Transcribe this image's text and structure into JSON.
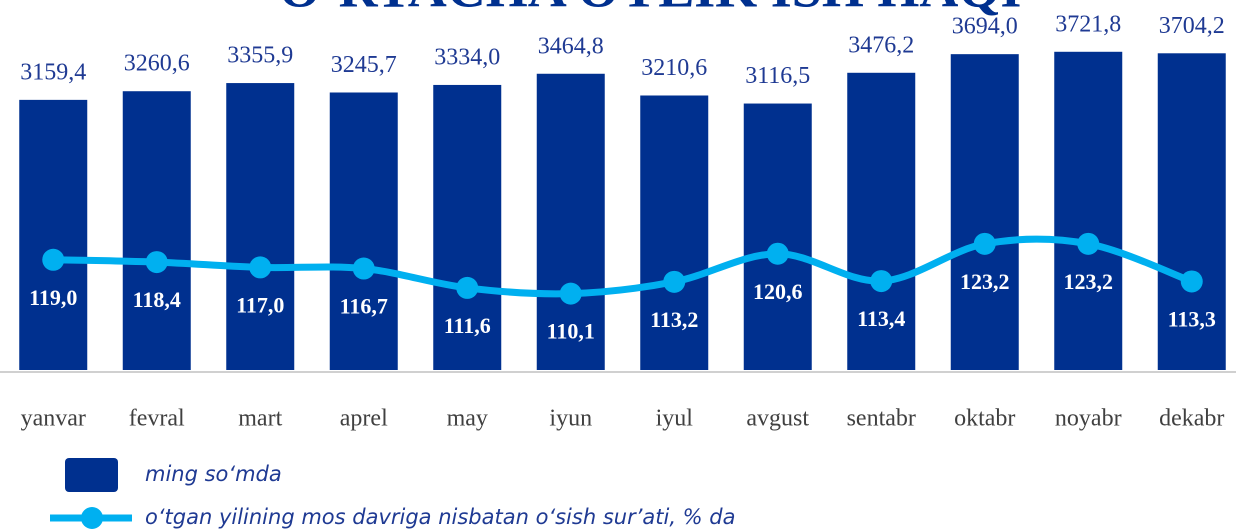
{
  "chart_data": {
    "type": "bar_line",
    "title": "O‘RTACHA OYLIK ISH HAQI",
    "categories": [
      "yanvar",
      "fevral",
      "mart",
      "aprel",
      "may",
      "iyun",
      "iyul",
      "avgust",
      "sentabr",
      "oktabr",
      "noyabr",
      "dekabr"
    ],
    "series": [
      {
        "name": "ming so‘mda",
        "type": "bar",
        "color": "#00308f",
        "values": [
          3159.4,
          3260.6,
          3355.9,
          3245.7,
          3334.0,
          3464.8,
          3210.6,
          3116.5,
          3476.2,
          3694.0,
          3721.8,
          3704.2
        ],
        "value_labels": [
          "3159,4",
          "3260,6",
          "3355,9",
          "3245,7",
          "3334,0",
          "3464,8",
          "3210,6",
          "3116,5",
          "3476,2",
          "3694,0",
          "3721,8",
          "3704,2"
        ]
      },
      {
        "name": "o‘tgan yilining mos davriga nisbatan o‘sish sur’ati, % da",
        "type": "line",
        "axis": "y2",
        "color": "#00b0f0",
        "values": [
          119.0,
          118.4,
          117.0,
          116.7,
          111.6,
          110.1,
          113.2,
          120.6,
          113.4,
          123.2,
          123.2,
          113.3
        ],
        "value_labels": [
          "119,0",
          "118,4",
          "117,0",
          "116,7",
          "111,6",
          "110,1",
          "113,2",
          "120,6",
          "113,4",
          "123,2",
          "123,2",
          "113,3"
        ]
      }
    ],
    "ylim": [
      0,
      4000
    ],
    "y2lim": [
      90,
      180
    ]
  }
}
